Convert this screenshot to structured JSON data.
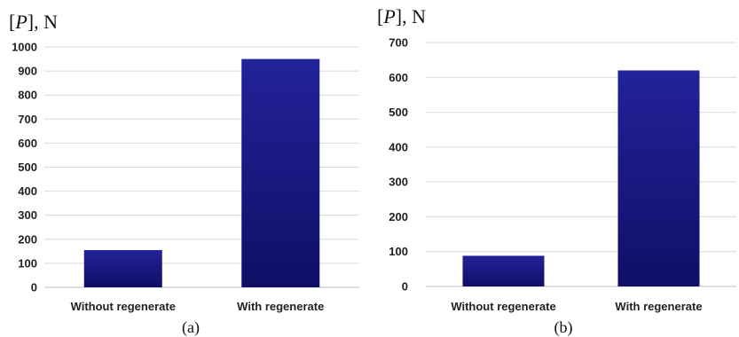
{
  "chart_data": [
    {
      "type": "bar",
      "panel_label": "(a)",
      "ylabel_prefix": "[",
      "ylabel_italic": "P",
      "ylabel_suffix": "], N",
      "categories": [
        "Without regenerate",
        "With regenerate"
      ],
      "values": [
        155,
        950
      ],
      "ylim": [
        0,
        1000
      ],
      "yticks": [
        0,
        100,
        200,
        300,
        400,
        500,
        600,
        700,
        800,
        900,
        1000
      ],
      "grid": true,
      "bar_color": "#1a1a8c"
    },
    {
      "type": "bar",
      "panel_label": "(b)",
      "ylabel_prefix": "[",
      "ylabel_italic": "P",
      "ylabel_suffix": "], N",
      "categories": [
        "Without regenerate",
        "With regenerate"
      ],
      "values": [
        88,
        620
      ],
      "ylim": [
        0,
        700
      ],
      "yticks": [
        0,
        100,
        200,
        300,
        400,
        500,
        600,
        700
      ],
      "grid": true,
      "bar_color": "#1a1a8c"
    }
  ]
}
